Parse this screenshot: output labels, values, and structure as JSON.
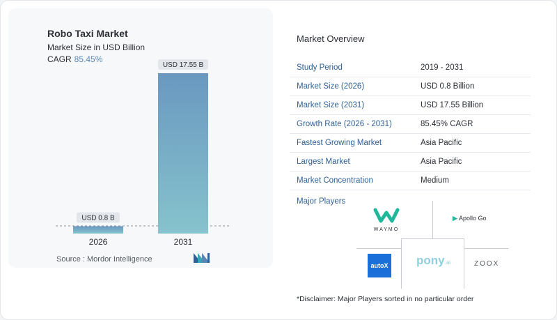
{
  "chart_data": {
    "type": "bar",
    "title": "Robo Taxi Market",
    "subtitle": "Market Size in USD Billion",
    "cagr_label": "CAGR",
    "cagr_value": "85.45%",
    "categories": [
      "2026",
      "2031"
    ],
    "values": [
      0.8,
      17.55
    ],
    "data_labels": [
      "USD 0.8 B",
      "USD 17.55 B"
    ],
    "bar_colors": {
      "top": "#6a98c0",
      "bottom": "#86c3cd"
    }
  },
  "source": "Source :  Mordor Intelligence",
  "overview": {
    "title": "Market Overview",
    "rows": [
      {
        "key": "Study Period",
        "value": "2019 - 2031"
      },
      {
        "key": "Market Size (2026)",
        "value": "USD 0.8 Billion"
      },
      {
        "key": "Market Size (2031)",
        "value": "USD 17.55 Billion"
      },
      {
        "key": "Growth Rate (2026 - 2031)",
        "value": "85.45% CAGR"
      },
      {
        "key": "Fastest Growing Market",
        "value": "Asia Pacific"
      },
      {
        "key": "Largest Market",
        "value": "Asia Pacific"
      },
      {
        "key": "Market Concentration",
        "value": "Medium"
      }
    ]
  },
  "players": {
    "title": "Major Players",
    "logos": {
      "waymo": "WAYMO",
      "apollo": "Apollo Go",
      "autox": "autoX",
      "pony": "pony",
      "pony_suffix": ".ai",
      "zoox": "ZOOX"
    }
  },
  "disclaimer": "*Disclaimer: Major Players sorted in no particular order"
}
